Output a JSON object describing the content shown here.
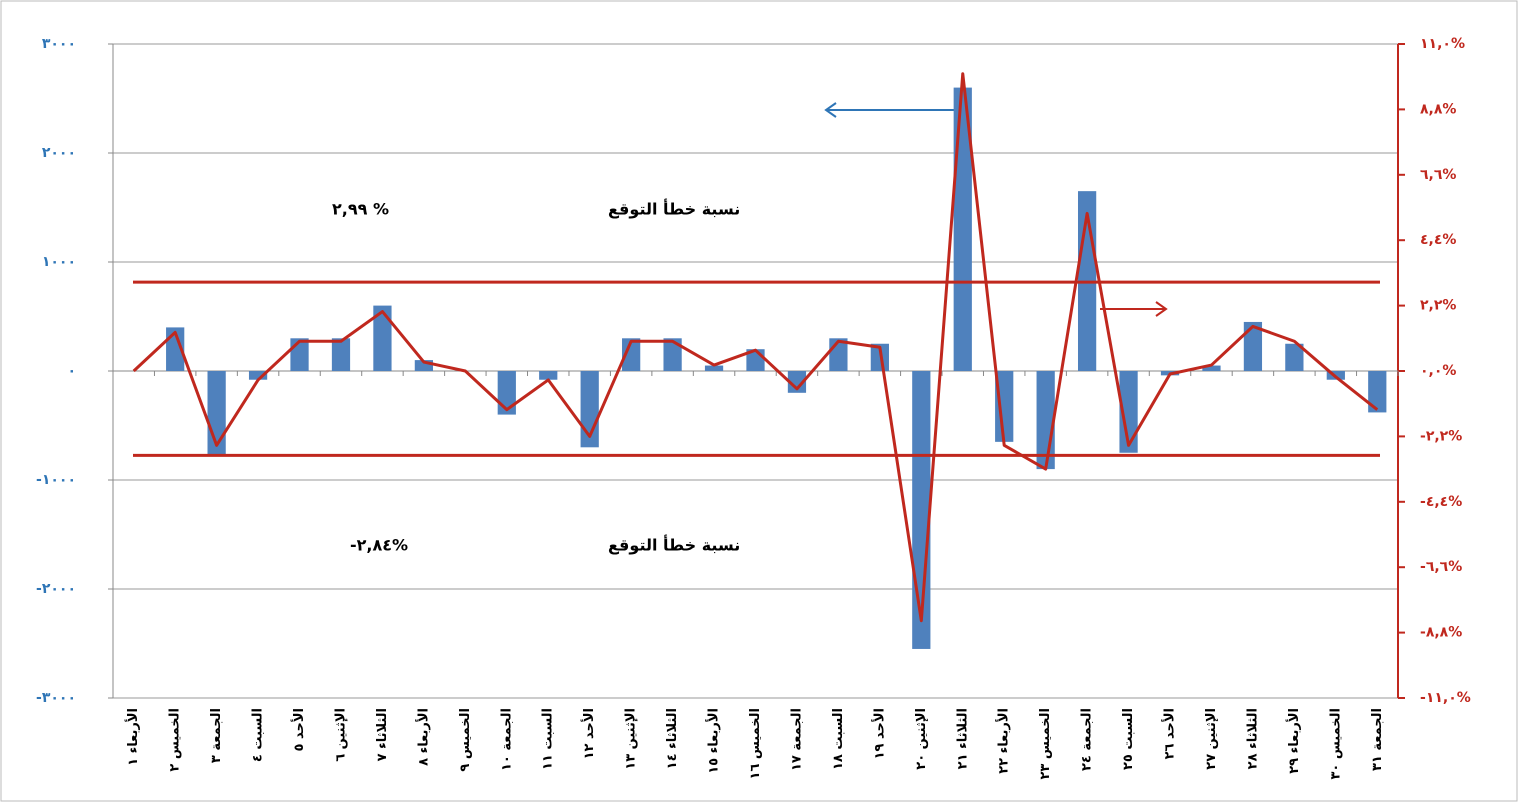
{
  "chart_data": {
    "type": "bar-line",
    "categories": [
      "الأربعاء ١",
      "الخميس ٢",
      "الجمعة ٣",
      "السبت ٤",
      "الأحد ٥",
      "الإثنين ٦",
      "الثلاثاء ٧",
      "الأربعاء ٨",
      "الخميس ٩",
      "الجمعة ١٠",
      "السبت ١١",
      "الأحد ١٢",
      "الإثنين ١٣",
      "الثلاثاء ١٤",
      "الأربعاء ١٥",
      "الخميس ١٦",
      "الجمعة ١٧",
      "السبت ١٨",
      "الأحد ١٩",
      "الإثنين ٢٠",
      "الثلاثاء ٢١",
      "الأربعاء ٢٢",
      "الخميس ٢٣",
      "الجمعة ٢٤",
      "السبت ٢٥",
      "الأحد ٢٦",
      "الإثنين ٢٧",
      "الثلاثاء ٢٨",
      "الأربعاء ٢٩",
      "الخميس ٣٠",
      "الجمعة ٣١"
    ],
    "series": [
      {
        "type": "bar",
        "color": "#4f81bd",
        "values": [
          0,
          400,
          -770,
          -80,
          300,
          300,
          600,
          100,
          0,
          -400,
          -80,
          -700,
          300,
          300,
          50,
          200,
          -200,
          300,
          250,
          -2550,
          2600,
          -650,
          -900,
          1650,
          -750,
          -40,
          50,
          450,
          250,
          -80,
          -380
        ]
      },
      {
        "type": "line",
        "axis": "y2",
        "color": "#c0281e",
        "values": [
          0,
          1.3,
          -2.5,
          -0.3,
          1.0,
          1.0,
          2.0,
          0.3,
          0,
          -1.3,
          -0.3,
          -2.2,
          1.0,
          1.0,
          0.2,
          0.7,
          -0.6,
          1.0,
          0.8,
          -8.4,
          10.0,
          -2.5,
          -3.3,
          5.3,
          -2.5,
          -0.1,
          0.2,
          1.5,
          1.0,
          -0.2,
          -1.3
        ]
      }
    ],
    "ylim": [
      -3000,
      3000
    ],
    "yticks": [
      {
        "value": -3000,
        "label": "-٣٠٠٠"
      },
      {
        "value": -2000,
        "label": "-٢٠٠٠"
      },
      {
        "value": -1000,
        "label": "-١٠٠٠"
      },
      {
        "value": 0,
        "label": "٠"
      },
      {
        "value": 1000,
        "label": "١٠٠٠"
      },
      {
        "value": 2000,
        "label": "٢٠٠٠"
      },
      {
        "value": 3000,
        "label": "٣٠٠٠"
      }
    ],
    "y2lim": [
      -11,
      11
    ],
    "y2ticks": [
      {
        "value": -11,
        "label": "-١١,٠%"
      },
      {
        "value": -8.8,
        "label": "-٨,٨%"
      },
      {
        "value": -6.6,
        "label": "-٦,٦%"
      },
      {
        "value": -4.4,
        "label": "-٤,٤%"
      },
      {
        "value": -2.2,
        "label": "-٢,٢%"
      },
      {
        "value": 0,
        "label": "٠,٠%"
      },
      {
        "value": 2.2,
        "label": "٢,٢%"
      },
      {
        "value": 4.4,
        "label": "٤,٤%"
      },
      {
        "value": 6.6,
        "label": "٦,٦%"
      },
      {
        "value": 8.8,
        "label": "٨,٨%"
      },
      {
        "value": 11,
        "label": "١١,٠%"
      }
    ],
    "grid": true,
    "reference_lines": [
      {
        "value": 2.99,
        "label": "٢,٩٩ %",
        "text": "نسبة خطأ التوقع"
      },
      {
        "value": -2.84,
        "label": "-٢,٨٤%",
        "text": "نسبة خطأ التوقع"
      }
    ]
  }
}
